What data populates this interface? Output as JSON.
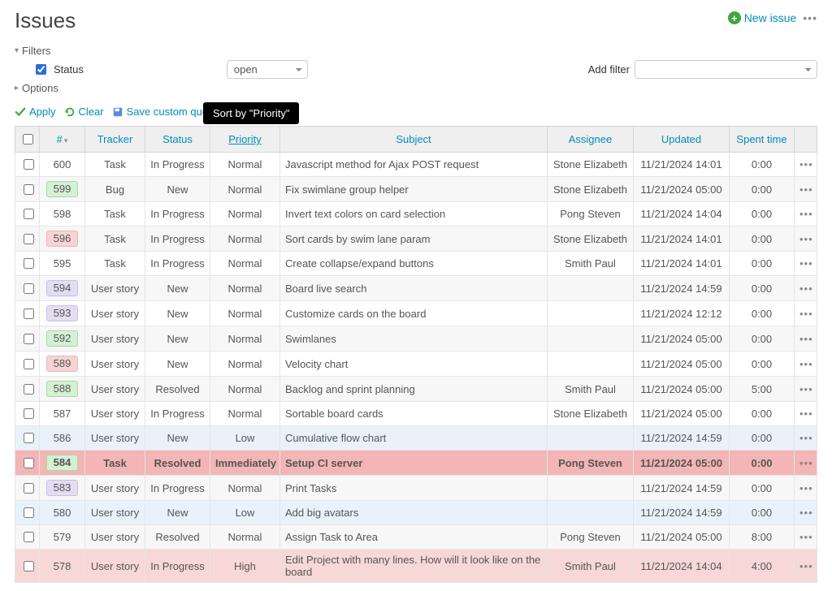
{
  "page": {
    "title": "Issues"
  },
  "top": {
    "new_issue": "New issue"
  },
  "sections": {
    "filters": "Filters",
    "options": "Options"
  },
  "filters": {
    "status_label": "Status",
    "status_value": "open",
    "add_filter_label": "Add filter"
  },
  "queryActions": {
    "apply": "Apply",
    "clear": "Clear",
    "save": "Save custom query"
  },
  "tooltip": "Sort by \"Priority\"",
  "columns": {
    "id": "#",
    "tracker": "Tracker",
    "status": "Status",
    "priority": "Priority",
    "subject": "Subject",
    "assignee": "Assignee",
    "updated": "Updated",
    "spent": "Spent time"
  },
  "colors": {
    "link": "#018DB8",
    "chip_green_bg": "#D5F0D5",
    "chip_green_bd": "#A8D8A8",
    "chip_red_bg": "#F6D4D4",
    "chip_red_bd": "#E8B6B6",
    "chip_purple_bg": "#E2DDF1",
    "chip_purple_bd": "#C9C0E6",
    "row_low_bg": "#E9F2FB",
    "row_low_text": "#3B6EDC",
    "row_imm_bg": "#F3B5B5",
    "row_imm_text": "#B02A2A",
    "row_high_bg": "#F8D7D7",
    "row_high_text": "#C24040"
  },
  "rows": [
    {
      "id": "600",
      "tracker": "Task",
      "status": "In Progress",
      "priority": "Normal",
      "subject": "Javascript method for Ajax POST request",
      "assignee": "Stone Elizabeth",
      "updated": "11/21/2024 14:01",
      "spent": "0:00",
      "chip": null,
      "rowstyle": null
    },
    {
      "id": "599",
      "tracker": "Bug",
      "status": "New",
      "priority": "Normal",
      "subject": "Fix swimlane group helper",
      "assignee": "Stone Elizabeth",
      "updated": "11/21/2024 05:00",
      "spent": "0:00",
      "chip": "green",
      "rowstyle": null
    },
    {
      "id": "598",
      "tracker": "Task",
      "status": "In Progress",
      "priority": "Normal",
      "subject": "Invert text colors on card selection",
      "assignee": "Pong Steven",
      "updated": "11/21/2024 14:04",
      "spent": "0:00",
      "chip": null,
      "rowstyle": null
    },
    {
      "id": "596",
      "tracker": "Task",
      "status": "In Progress",
      "priority": "Normal",
      "subject": "Sort cards by swim lane param",
      "assignee": "Stone Elizabeth",
      "updated": "11/21/2024 14:01",
      "spent": "0:00",
      "chip": "red",
      "rowstyle": null
    },
    {
      "id": "595",
      "tracker": "Task",
      "status": "In Progress",
      "priority": "Normal",
      "subject": "Create collapse/expand buttons",
      "assignee": "Smith Paul",
      "updated": "11/21/2024 14:01",
      "spent": "0:00",
      "chip": null,
      "rowstyle": null
    },
    {
      "id": "594",
      "tracker": "User story",
      "status": "New",
      "priority": "Normal",
      "subject": "Board live search",
      "assignee": "",
      "updated": "11/21/2024 14:59",
      "spent": "0:00",
      "chip": "purple",
      "rowstyle": null
    },
    {
      "id": "593",
      "tracker": "User story",
      "status": "New",
      "priority": "Normal",
      "subject": "Customize cards on the board",
      "assignee": "",
      "updated": "11/21/2024 12:12",
      "spent": "0:00",
      "chip": "purple",
      "rowstyle": null
    },
    {
      "id": "592",
      "tracker": "User story",
      "status": "New",
      "priority": "Normal",
      "subject": "Swimlanes",
      "assignee": "",
      "updated": "11/21/2024 05:00",
      "spent": "0:00",
      "chip": "green",
      "rowstyle": null
    },
    {
      "id": "589",
      "tracker": "User story",
      "status": "New",
      "priority": "Normal",
      "subject": "Velocity chart",
      "assignee": "",
      "updated": "11/21/2024 05:00",
      "spent": "0:00",
      "chip": "red",
      "rowstyle": null
    },
    {
      "id": "588",
      "tracker": "User story",
      "status": "Resolved",
      "priority": "Normal",
      "subject": "Backlog and sprint planning",
      "assignee": "Smith Paul",
      "updated": "11/21/2024 05:00",
      "spent": "5:00",
      "chip": "green",
      "rowstyle": null
    },
    {
      "id": "587",
      "tracker": "User story",
      "status": "In Progress",
      "priority": "Normal",
      "subject": "Sortable board cards",
      "assignee": "Stone Elizabeth",
      "updated": "11/21/2024 05:00",
      "spent": "0:00",
      "chip": null,
      "rowstyle": null
    },
    {
      "id": "586",
      "tracker": "User story",
      "status": "New",
      "priority": "Low",
      "subject": "Cumulative flow chart",
      "assignee": "",
      "updated": "11/21/2024 14:59",
      "spent": "0:00",
      "chip": null,
      "rowstyle": "low"
    },
    {
      "id": "584",
      "tracker": "Task",
      "status": "Resolved",
      "priority": "Immediately",
      "subject": "Setup CI server",
      "assignee": "Pong Steven",
      "updated": "11/21/2024 05:00",
      "spent": "0:00",
      "chip": "green",
      "rowstyle": "imm"
    },
    {
      "id": "583",
      "tracker": "User story",
      "status": "In Progress",
      "priority": "Normal",
      "subject": "Print Tasks",
      "assignee": "",
      "updated": "11/21/2024 14:59",
      "spent": "0:00",
      "chip": "purple",
      "rowstyle": null
    },
    {
      "id": "580",
      "tracker": "User story",
      "status": "New",
      "priority": "Low",
      "subject": "Add big avatars",
      "assignee": "",
      "updated": "11/21/2024 14:59",
      "spent": "0:00",
      "chip": null,
      "rowstyle": "low"
    },
    {
      "id": "579",
      "tracker": "User story",
      "status": "Resolved",
      "priority": "Normal",
      "subject": "Assign Task to Area",
      "assignee": "Pong Steven",
      "updated": "11/21/2024 05:00",
      "spent": "8:00",
      "chip": null,
      "rowstyle": null
    },
    {
      "id": "578",
      "tracker": "User story",
      "status": "In Progress",
      "priority": "High",
      "subject": "Edit Project with many lines. How will it look like on the board",
      "assignee": "Smith Paul",
      "updated": "11/21/2024 14:04",
      "spent": "4:00",
      "chip": null,
      "rowstyle": "high"
    }
  ]
}
